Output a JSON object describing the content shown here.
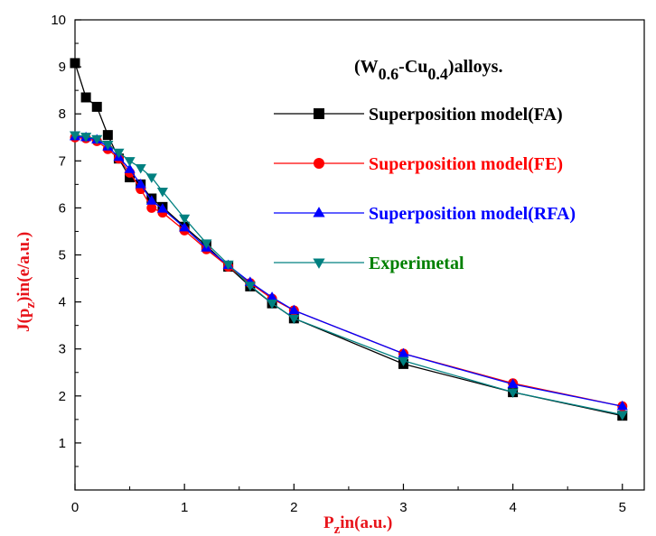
{
  "chart_data": {
    "type": "line",
    "annotation": {
      "prefix": "(W",
      "sub1": "0.6",
      "mid": "-Cu",
      "sub2": "0.4",
      "suffix": ")alloys."
    },
    "xlabel": {
      "main": "P",
      "sub": "z",
      "rest": "in(a.u.)"
    },
    "ylabel": {
      "main": "J(p",
      "sub": "z",
      "rest": ")in(e/a.u.)"
    },
    "xlim": [
      0,
      5.2
    ],
    "ylim": [
      0,
      10
    ],
    "xticks": [
      0,
      1,
      2,
      3,
      4,
      5
    ],
    "yticks": [
      1,
      2,
      3,
      4,
      5,
      6,
      7,
      8,
      9,
      10
    ],
    "x": [
      0,
      0.1,
      0.2,
      0.3,
      0.4,
      0.5,
      0.6,
      0.7,
      0.8,
      1.0,
      1.2,
      1.4,
      1.6,
      1.8,
      2.0,
      3.0,
      4.0,
      5.0
    ],
    "series": [
      {
        "name": "Superposition model(FA)",
        "marker": "square",
        "line_color": "#000000",
        "marker_color": "#000000",
        "text_color": "#000000",
        "values": [
          9.08,
          8.35,
          8.15,
          7.55,
          7.05,
          6.65,
          6.5,
          6.2,
          6.02,
          5.6,
          5.2,
          4.75,
          4.33,
          3.97,
          3.65,
          2.68,
          2.08,
          1.58
        ]
      },
      {
        "name": "Superposition model(FE)",
        "marker": "circle",
        "line_color": "#ff0000",
        "marker_color": "#ff0000",
        "text_color": "#ff0000",
        "values": [
          7.5,
          7.48,
          7.42,
          7.25,
          7.05,
          6.75,
          6.4,
          6.0,
          5.9,
          5.52,
          5.12,
          4.75,
          4.4,
          4.07,
          3.82,
          2.9,
          2.27,
          1.78
        ]
      },
      {
        "name": "Superposition model(RFA)",
        "marker": "triangle-up",
        "line_color": "#0000ff",
        "marker_color": "#0000ff",
        "text_color": "#0000ff",
        "values": [
          7.52,
          7.5,
          7.45,
          7.3,
          7.08,
          6.82,
          6.5,
          6.15,
          5.98,
          5.58,
          5.15,
          4.78,
          4.42,
          4.1,
          3.82,
          2.9,
          2.25,
          1.78
        ]
      },
      {
        "name": "Experimetal",
        "marker": "triangle-down",
        "line_color": "#008080",
        "marker_color": "#008080",
        "text_color": "#008000",
        "values": [
          7.55,
          7.52,
          7.47,
          7.35,
          7.18,
          7.0,
          6.85,
          6.65,
          6.35,
          5.78,
          5.25,
          4.8,
          4.35,
          3.97,
          3.65,
          2.75,
          2.08,
          1.6
        ]
      }
    ]
  }
}
